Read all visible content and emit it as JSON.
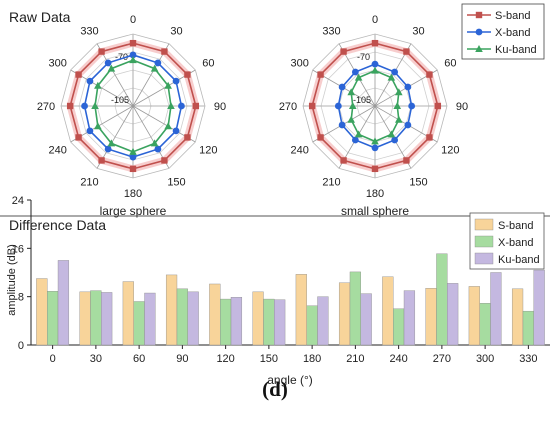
{
  "figure": {
    "panel_label": "(d)"
  },
  "chart_data": [
    {
      "type": "polar-line",
      "panel_title": "Raw Data",
      "title": "large sphere",
      "angles": [
        0,
        30,
        60,
        90,
        120,
        150,
        180,
        210,
        240,
        270,
        300,
        330
      ],
      "angle_labels": [
        "0",
        "30",
        "60",
        "90",
        "120",
        "150",
        "180",
        "210",
        "240",
        "270",
        "300",
        "330"
      ],
      "radial_range": [
        -105,
        -50
      ],
      "radial_tick_labels": [
        "-70",
        "-105"
      ],
      "series": [
        {
          "name": "S-band",
          "values": [
            -57,
            -57,
            -57,
            -57,
            -57,
            -57,
            -57,
            -57,
            -57,
            -57,
            -57,
            -57
          ]
        },
        {
          "name": "X-band",
          "values": [
            -66,
            -67,
            -67,
            -68,
            -67,
            -67,
            -66,
            -67,
            -67,
            -68,
            -67,
            -67
          ]
        },
        {
          "name": "Ku-band",
          "values": [
            -70,
            -72,
            -74,
            -76,
            -74,
            -72,
            -70,
            -72,
            -74,
            -76,
            -74,
            -72
          ]
        }
      ]
    },
    {
      "type": "polar-line",
      "title": "small sphere",
      "angles": [
        0,
        30,
        60,
        90,
        120,
        150,
        180,
        210,
        240,
        270,
        300,
        330
      ],
      "angle_labels": [
        "0",
        "30",
        "60",
        "90",
        "120",
        "150",
        "180",
        "210",
        "240",
        "270",
        "300",
        "330"
      ],
      "radial_range": [
        -105,
        -50
      ],
      "radial_tick_labels": [
        "-70",
        "-105"
      ],
      "series": [
        {
          "name": "S-band",
          "values": [
            -57,
            -57,
            -57,
            -57,
            -57,
            -57,
            -57,
            -57,
            -57,
            -57,
            -57,
            -57
          ]
        },
        {
          "name": "X-band",
          "values": [
            -73,
            -75,
            -76,
            -77,
            -76,
            -75,
            -73,
            -75,
            -76,
            -77,
            -76,
            -75
          ]
        },
        {
          "name": "Ku-band",
          "values": [
            -78,
            -80,
            -84,
            -88,
            -84,
            -80,
            -78,
            -80,
            -84,
            -88,
            -84,
            -80
          ]
        }
      ]
    },
    {
      "type": "bar",
      "panel_title": "Difference Data",
      "categories": [
        "0",
        "30",
        "60",
        "90",
        "120",
        "150",
        "180",
        "210",
        "240",
        "270",
        "300",
        "330"
      ],
      "series": [
        {
          "name": "S-band",
          "values": [
            11.0,
            8.8,
            10.5,
            11.6,
            10.1,
            8.8,
            11.7,
            10.3,
            11.3,
            9.4,
            9.7,
            9.3
          ]
        },
        {
          "name": "X-band",
          "values": [
            8.9,
            9.0,
            7.2,
            9.3,
            7.6,
            7.6,
            6.5,
            12.1,
            6.0,
            15.1,
            6.9,
            5.6
          ]
        },
        {
          "name": "Ku-band",
          "values": [
            14.0,
            8.7,
            8.6,
            8.8,
            7.9,
            7.5,
            8.0,
            8.5,
            9.0,
            10.2,
            12.0,
            12.4
          ]
        }
      ],
      "xlabel": "angle (°)",
      "ylabel": "amplitude (dB)",
      "ylim": [
        0,
        24
      ],
      "yticks": [
        0,
        8,
        16,
        24
      ]
    }
  ],
  "colors": {
    "S-band": "#c0504d",
    "X-band": "#2b64d6",
    "Ku-band": "#3aa35f",
    "bar_S-band": "#f8d49a",
    "bar_X-band": "#a6dca0",
    "bar_Ku-band": "#c4b8e0",
    "axis": "#222222",
    "grid": "#cfcfcf"
  }
}
